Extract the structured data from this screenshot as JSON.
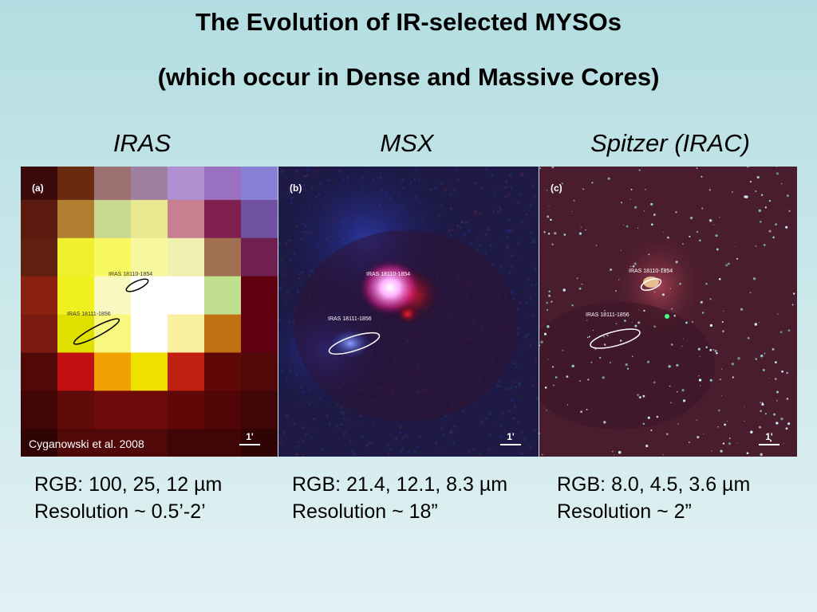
{
  "slide": {
    "title_line1": "The Evolution of IR-selected MYSOs",
    "title_line2": "(which occur in Dense and Massive Cores)"
  },
  "panels": [
    {
      "heading": "IRAS",
      "letter": "(a)",
      "source_a": "IRAS 18110-1854",
      "source_b": "IRAS 18111-1856",
      "scale_label": "1'",
      "credit": "Cyganowski et al. 2008",
      "caption_rgb": "RGB: 100, 25, 12 µm",
      "caption_res": "Resolution ~ 0.5’-2’"
    },
    {
      "heading": "MSX",
      "letter": "(b)",
      "source_a": "IRAS 18110-1854",
      "source_b": "IRAS 18111-1856",
      "scale_label": "1'",
      "caption_rgb": "RGB: 21.4, 12.1, 8.3 µm",
      "caption_res": "Resolution ~ 18”"
    },
    {
      "heading": "Spitzer (IRAC)",
      "letter": "(c)",
      "source_a": "IRAS 18110-1854",
      "source_b": "IRAS 18111-1856",
      "scale_label": "1'",
      "caption_rgb": "RGB: 8.0, 4.5, 3.6 µm",
      "caption_res": "Resolution ~ 2”"
    }
  ]
}
